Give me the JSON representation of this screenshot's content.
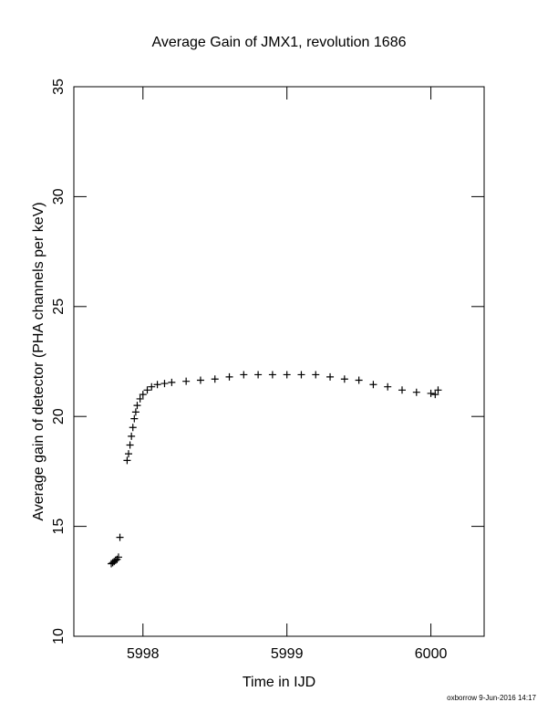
{
  "chart_data": {
    "type": "scatter",
    "title": "Average Gain of JMX1, revolution 1686",
    "xlabel": "Time in IJD",
    "ylabel": "Average gain of detector (PHA channels per keV)",
    "footer": "oxborrow  9-Jun-2016 14:17",
    "color": "#000000",
    "x": [
      5997.78,
      5997.79,
      5997.8,
      5997.81,
      5997.82,
      5997.83,
      5997.84,
      5997.89,
      5997.9,
      5997.91,
      5997.92,
      5997.93,
      5997.94,
      5997.95,
      5997.96,
      5997.98,
      5998.0,
      5998.03,
      5998.06,
      5998.1,
      5998.15,
      5998.2,
      5998.3,
      5998.4,
      5998.5,
      5998.6,
      5998.7,
      5998.8,
      5998.9,
      5999.0,
      5999.1,
      5999.2,
      5999.3,
      5999.4,
      5999.5,
      5999.6,
      5999.7,
      5999.8,
      5999.9,
      6000.0,
      6000.03,
      6000.05
    ],
    "y": [
      13.3,
      13.35,
      13.4,
      13.45,
      13.5,
      13.6,
      14.5,
      18.0,
      18.3,
      18.7,
      19.1,
      19.5,
      19.9,
      20.2,
      20.5,
      20.8,
      21.0,
      21.2,
      21.35,
      21.45,
      21.5,
      21.55,
      21.6,
      21.65,
      21.7,
      21.8,
      21.9,
      21.9,
      21.9,
      21.9,
      21.9,
      21.9,
      21.8,
      21.7,
      21.65,
      21.45,
      21.35,
      21.2,
      21.1,
      21.05,
      21.0,
      21.2
    ],
    "xlim": [
      5997.52,
      6000.37
    ],
    "xticks": [
      5998,
      5999,
      6000
    ],
    "ylim": [
      10,
      35
    ],
    "yticks": [
      10,
      15,
      20,
      25,
      30,
      35
    ]
  }
}
